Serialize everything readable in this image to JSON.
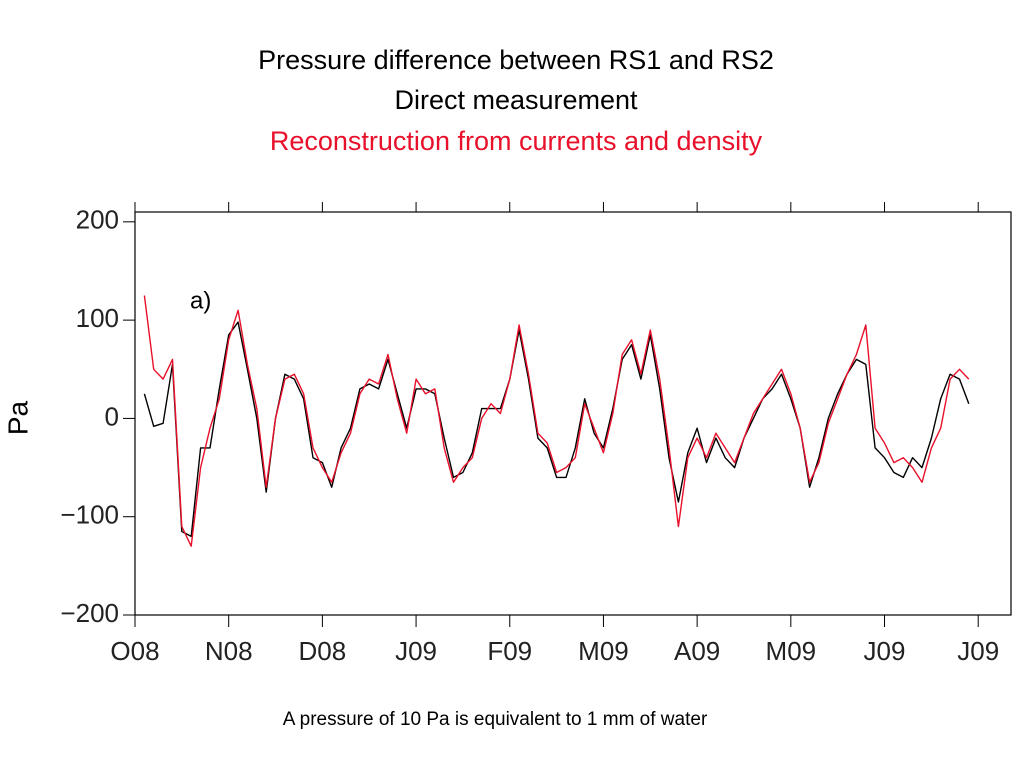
{
  "chart_data": {
    "type": "line",
    "title": "Pressure difference between RS1 and RS2",
    "ylabel": "Pa",
    "annotation": "a)",
    "footnote": "A pressure of 10 Pa is equivalent to 1 mm of water",
    "xlim": [
      0,
      9.35
    ],
    "xticks": [
      {
        "value": 0,
        "label": "O08"
      },
      {
        "value": 1,
        "label": "N08"
      },
      {
        "value": 2,
        "label": "D08"
      },
      {
        "value": 3,
        "label": "J09"
      },
      {
        "value": 4,
        "label": "F09"
      },
      {
        "value": 5,
        "label": "M09"
      },
      {
        "value": 6,
        "label": "A09"
      },
      {
        "value": 7,
        "label": "M09"
      },
      {
        "value": 8,
        "label": "J09"
      },
      {
        "value": 9,
        "label": "J09"
      }
    ],
    "ylim": [
      -200,
      210
    ],
    "yticks": [
      200,
      100,
      0,
      {
        "value": -100,
        "label": "−100"
      },
      {
        "value": -200,
        "label": "−200"
      }
    ],
    "x": [
      0.1,
      0.2,
      0.3,
      0.4,
      0.5,
      0.6,
      0.7,
      0.8,
      0.9,
      1.0,
      1.1,
      1.2,
      1.3,
      1.4,
      1.5,
      1.6,
      1.7,
      1.8,
      1.9,
      2.0,
      2.1,
      2.2,
      2.3,
      2.4,
      2.5,
      2.6,
      2.7,
      2.8,
      2.9,
      3.0,
      3.1,
      3.2,
      3.3,
      3.4,
      3.5,
      3.6,
      3.7,
      3.8,
      3.9,
      4.0,
      4.1,
      4.2,
      4.3,
      4.4,
      4.5,
      4.6,
      4.7,
      4.8,
      4.9,
      5.0,
      5.1,
      5.2,
      5.3,
      5.4,
      5.5,
      5.6,
      5.7,
      5.8,
      5.9,
      6.0,
      6.1,
      6.2,
      6.3,
      6.4,
      6.5,
      6.6,
      6.7,
      6.8,
      6.9,
      7.0,
      7.1,
      7.2,
      7.3,
      7.4,
      7.5,
      7.6,
      7.7,
      7.8,
      7.9,
      8.0,
      8.1,
      8.2,
      8.3,
      8.4,
      8.5,
      8.6,
      8.7,
      8.8,
      8.9
    ],
    "series": [
      {
        "name": "Direct measurement",
        "color": "#000000",
        "values": [
          25,
          -8,
          -5,
          55,
          -115,
          -120,
          -30,
          -30,
          30,
          85,
          98,
          50,
          0,
          -75,
          0,
          45,
          40,
          20,
          -40,
          -45,
          -70,
          -30,
          -10,
          30,
          35,
          30,
          60,
          25,
          -10,
          30,
          30,
          25,
          -20,
          -60,
          -55,
          -35,
          10,
          10,
          10,
          40,
          90,
          40,
          -20,
          -30,
          -60,
          -60,
          -30,
          20,
          -15,
          -30,
          10,
          60,
          75,
          40,
          85,
          30,
          -40,
          -85,
          -35,
          -10,
          -45,
          -20,
          -40,
          -50,
          -20,
          0,
          20,
          30,
          45,
          20,
          -10,
          -70,
          -40,
          0,
          25,
          45,
          60,
          55,
          -30,
          -40,
          -55,
          -60,
          -40,
          -50,
          -20,
          20,
          45,
          40,
          15
        ]
      },
      {
        "name": "Reconstruction from currents and density",
        "color": "#e8102a",
        "values": [
          125,
          50,
          40,
          60,
          -110,
          -130,
          -50,
          -10,
          20,
          80,
          110,
          55,
          10,
          -70,
          0,
          40,
          45,
          25,
          -30,
          -50,
          -65,
          -35,
          -15,
          25,
          40,
          35,
          65,
          20,
          -15,
          40,
          25,
          30,
          -30,
          -65,
          -50,
          -40,
          0,
          15,
          5,
          40,
          95,
          45,
          -15,
          -25,
          -55,
          -50,
          -40,
          15,
          -10,
          -35,
          5,
          65,
          80,
          45,
          90,
          40,
          -30,
          -110,
          -40,
          -20,
          -40,
          -15,
          -30,
          -45,
          -20,
          5,
          20,
          35,
          50,
          25,
          -10,
          -65,
          -45,
          -5,
          20,
          45,
          65,
          95,
          -10,
          -25,
          -45,
          -40,
          -50,
          -65,
          -30,
          -10,
          40,
          50,
          40
        ]
      }
    ]
  }
}
